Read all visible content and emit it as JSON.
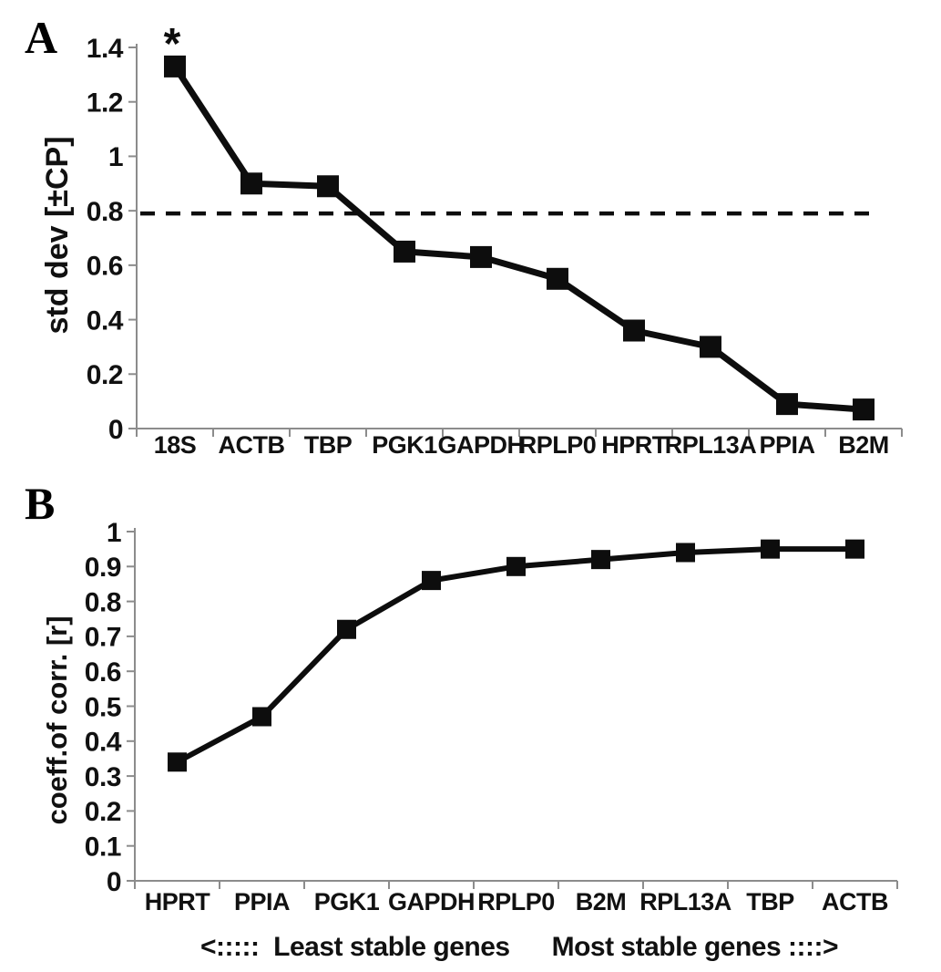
{
  "colors": {
    "background": "#ffffff",
    "line": "#0d0d0d",
    "axis": "#8c8c8c",
    "text": "#111111"
  },
  "chart_data": [
    {
      "type": "line",
      "panel_label": "A",
      "ylabel": "std dev [±CP]",
      "categories": [
        "18S",
        "ACTB",
        "TBP",
        "PGK1",
        "GAPDH",
        "RPLP0",
        "HPRT",
        "RPL13A",
        "PPIA",
        "B2M"
      ],
      "values": [
        1.33,
        0.9,
        0.89,
        0.65,
        0.63,
        0.55,
        0.36,
        0.3,
        0.09,
        0.07
      ],
      "ylim": [
        0,
        1.4
      ],
      "ytick_step": 0.2,
      "yticks": [
        "0",
        "0.2",
        "0.4",
        "0.6",
        "0.8",
        "1",
        "1.2",
        "1.4"
      ],
      "marker": "square",
      "grid": "off",
      "threshold_line": 0.79,
      "threshold_style": "dashed",
      "annotation": {
        "text": "*",
        "category": "18S"
      }
    },
    {
      "type": "line",
      "panel_label": "B",
      "ylabel": "coeff.of corr. [r]",
      "categories": [
        "HPRT",
        "PPIA",
        "PGK1",
        "GAPDH",
        "RPLP0",
        "B2M",
        "RPL13A",
        "TBP",
        "ACTB"
      ],
      "values": [
        0.34,
        0.47,
        0.72,
        0.86,
        0.9,
        0.92,
        0.94,
        0.95,
        0.95
      ],
      "ylim": [
        0,
        1
      ],
      "ytick_step": 0.1,
      "yticks": [
        "0",
        "0.1",
        "0.2",
        "0.3",
        "0.4",
        "0.5",
        "0.6",
        "0.7",
        "0.8",
        "0.9",
        "1"
      ],
      "marker": "square",
      "grid": "off",
      "footer_left": "<:::::  Least stable genes",
      "footer_right": "Most stable genes ::::>"
    }
  ]
}
